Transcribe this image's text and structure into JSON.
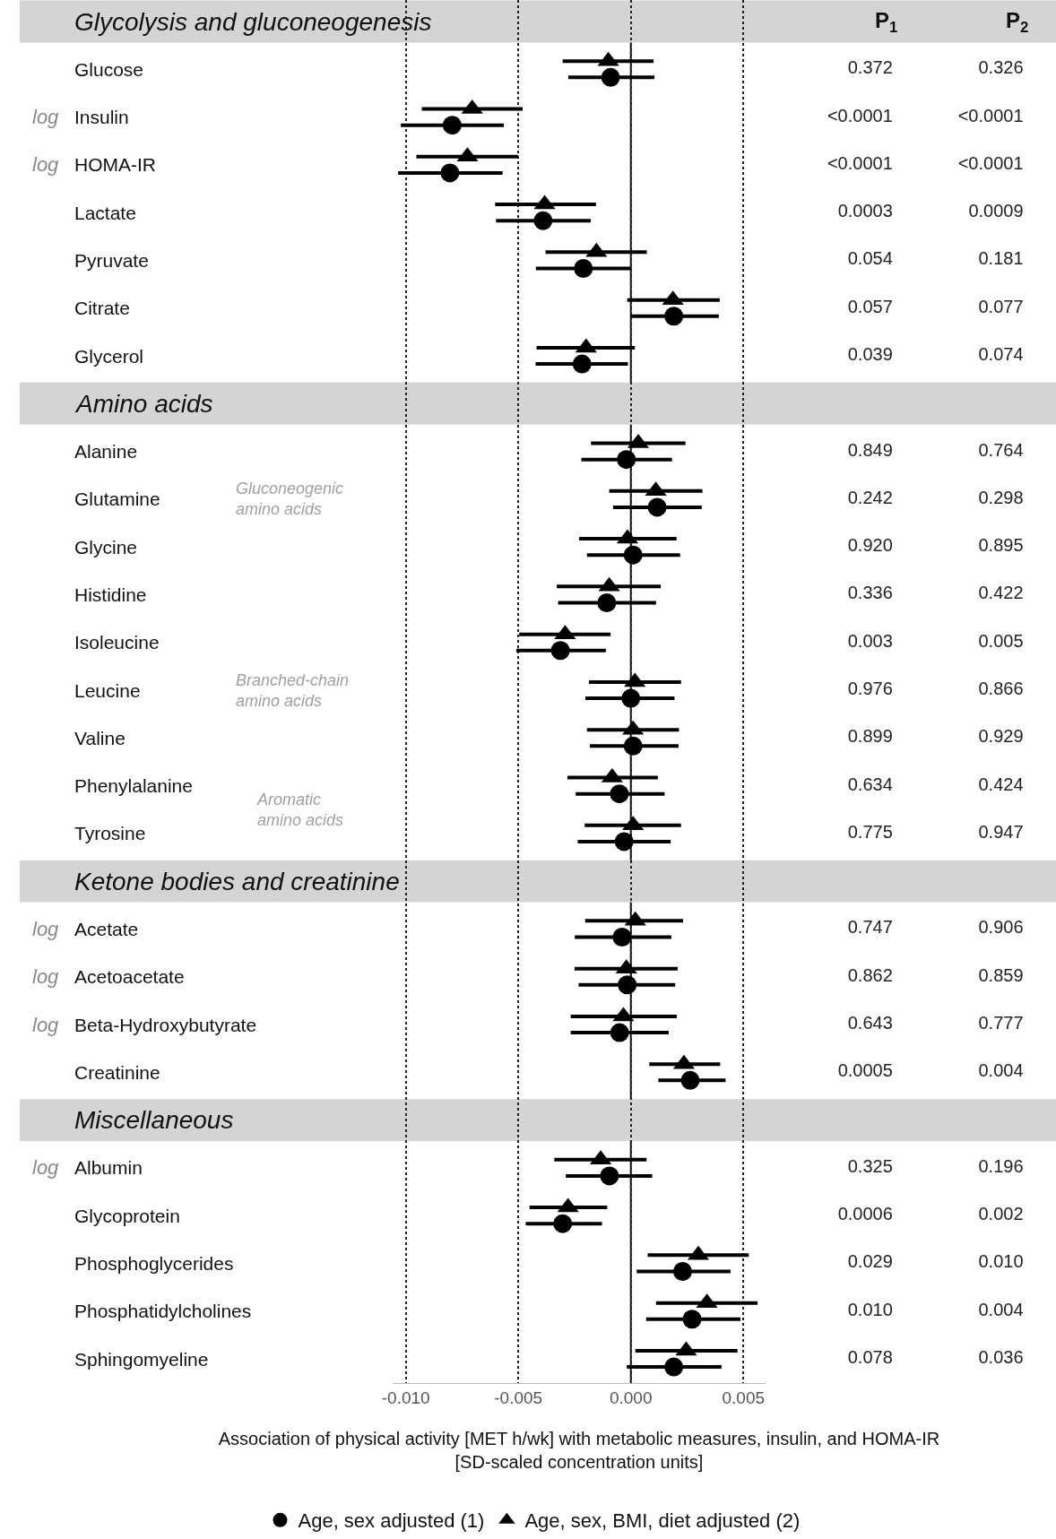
{
  "chart_data": [
    {
      "type": "scatter",
      "orientation": "horizontal",
      "xlabel": "Association of physical activity [MET h/wk] with metabolic measures, insulin, and HOMA-IR [SD-scaled concentration units]",
      "categories": [
        "Glycolysis and gluconeogenesis",
        "Glucose",
        "Insulin",
        "HOMA-IR",
        "Lactate",
        "Pyruvate",
        "Citrate",
        "Glycerol",
        "Amino acids",
        "Alanine",
        "Glutamine",
        "Glycine",
        "Histidine",
        "Isoleucine",
        "Leucine",
        "Valine",
        "Phenylalanine",
        "Tyrosine",
        "Ketone bodies and creatinine",
        "Acetate",
        "Acetoacetate",
        "Beta-Hydroxybutyrate",
        "Creatinine",
        "Miscellaneous",
        "Albumin",
        "Glycoprotein",
        "Phosphoglycerides",
        "Phosphatidylcholines",
        "Sphingomyeline"
      ],
      "series": [
        {
          "name": "Age, sex adjusted (1)",
          "color": "#000000",
          "marker": "circle",
          "values": [
            null,
            -0.0009,
            -0.00794,
            -0.00804,
            -0.0039,
            -0.00211,
            0.00191,
            -0.00217,
            null,
            -0.0002,
            0.00117,
            0.0001,
            -0.00107,
            -0.00313,
            0.0,
            0.0001,
            -0.00051,
            -0.0003,
            null,
            -0.00039,
            -0.00016,
            -0.0005,
            0.00264,
            null,
            -0.00095,
            -0.00303,
            0.0023,
            0.00272,
            0.00191
          ],
          "errors": [
            null,
            [
              -0.00278,
              0.00105
            ],
            [
              -0.01022,
              -0.00564
            ],
            [
              -0.01034,
              -0.0057
            ],
            [
              -0.00599,
              -0.00178
            ],
            [
              -0.00422,
              0.0
            ],
            [
              0.0,
              0.00391
            ],
            [
              -0.00423,
              -0.00013
            ],
            null,
            [
              -0.0022,
              0.00183
            ],
            [
              -0.00079,
              0.00315
            ],
            [
              -0.00195,
              0.00219
            ],
            [
              -0.00323,
              0.00112
            ],
            [
              -0.00509,
              -0.00111
            ],
            [
              -0.00202,
              0.00194
            ],
            [
              -0.00182,
              0.00212
            ],
            [
              -0.00245,
              0.0015
            ],
            [
              -0.00236,
              0.00177
            ],
            null,
            [
              -0.00249,
              0.0018
            ],
            [
              -0.00232,
              0.00197
            ],
            [
              -0.00267,
              0.00168
            ],
            [
              0.00122,
              0.00421
            ],
            null,
            [
              -0.00289,
              0.00095
            ],
            [
              -0.00467,
              -0.00128
            ],
            [
              0.00026,
              0.00443
            ],
            [
              0.00068,
              0.00487
            ],
            [
              -0.00018,
              0.00403
            ]
          ]
        },
        {
          "name": "Age, sex, BMI, diet adjusted (2)",
          "color": "#000000",
          "marker": "triangle",
          "values": [
            null,
            -0.001,
            -0.00705,
            -0.00726,
            -0.00383,
            -0.00153,
            0.00187,
            -0.00199,
            null,
            0.00033,
            0.00111,
            -0.00015,
            -0.00096,
            -0.00292,
            0.00018,
            0.0001,
            -0.00083,
            0.0001,
            null,
            0.0002,
            -0.0002,
            -0.00033,
            0.00236,
            null,
            -0.00134,
            -0.00279,
            0.003,
            0.00338,
            0.00246
          ],
          "errors": [
            null,
            [
              -0.00303,
              0.00101
            ],
            [
              -0.00929,
              -0.00481
            ],
            [
              -0.00953,
              -0.00501
            ],
            [
              -0.00603,
              -0.00155
            ],
            [
              -0.00379,
              0.00071
            ],
            [
              -0.00016,
              0.00395
            ],
            [
              -0.00419,
              0.00018
            ],
            null,
            [
              -0.00177,
              0.00243
            ],
            [
              -0.00096,
              0.00318
            ],
            [
              -0.0023,
              0.00203
            ],
            [
              -0.00329,
              0.00133
            ],
            [
              -0.00496,
              -0.0009
            ],
            [
              -0.00186,
              0.00223
            ],
            [
              -0.00195,
              0.00214
            ],
            [
              -0.00282,
              0.0012
            ],
            [
              -0.00205,
              0.00223
            ],
            null,
            [
              -0.00203,
              0.00232
            ],
            [
              -0.0025,
              0.00208
            ],
            [
              -0.00267,
              0.00204
            ],
            [
              0.00082,
              0.00397
            ],
            null,
            [
              -0.0034,
              0.0007
            ],
            [
              -0.0045,
              -0.00105
            ],
            [
              0.00075,
              0.00524
            ],
            [
              0.00112,
              0.00563
            ],
            [
              0.0002,
              0.00474
            ]
          ]
        }
      ],
      "xlim": [
        -0.0106,
        0.006
      ],
      "xticks": [
        {
          "value": -0.01,
          "label": "-0.010"
        },
        {
          "value": -0.005,
          "label": "-0.005"
        },
        {
          "value": 0,
          "label": "0.000"
        },
        {
          "value": 0.005,
          "label": "0.005"
        }
      ],
      "grid": "x",
      "ref_lines": [
        {
          "axis": "x",
          "value": 0
        }
      ],
      "legend": "bottom",
      "bands": [
        {
          "axis": "y",
          "from": "Glycolysis and gluconeogenesis",
          "to": "Glycolysis and gluconeogenesis",
          "color": "#d4d4d4"
        },
        {
          "axis": "y",
          "from": "Amino acids",
          "to": "Amino acids",
          "color": "#d4d4d4"
        },
        {
          "axis": "y",
          "from": "Ketone bodies and creatinine",
          "to": "Ketone bodies and creatinine",
          "color": "#d4d4d4"
        },
        {
          "axis": "y",
          "from": "Miscellaneous",
          "to": "Miscellaneous",
          "color": "#d4d4d4"
        }
      ],
      "annotations": [
        "log",
        "log",
        "log",
        "log",
        "log",
        "log",
        "Gluconeogenic amino acids",
        "Branched-chain amino acids",
        "Aromatic amino acids"
      ]
    },
    {
      "type": "heatmap",
      "categories": [
        "P$_{1}$",
        "P$_{2}$"
      ],
      "tick_labels": "x",
      "y_categories": [
        "Glucose",
        "Insulin",
        "HOMA-IR",
        "Lactate",
        "Pyruvate",
        "Citrate",
        "Glycerol"
      ],
      "cells": [
        [
          null,
          null
        ],
        [
          null,
          null
        ],
        [
          null,
          null
        ],
        [
          null,
          null
        ],
        [
          null,
          null
        ],
        [
          null,
          null
        ],
        [
          null,
          null
        ]
      ],
      "cell_labels": [
        [
          "0.372",
          "0.326"
        ],
        [
          "<0.0001",
          "<0.0001"
        ],
        [
          "<0.0001",
          "<0.0001"
        ],
        [
          "0.0003",
          "0.0009"
        ],
        [
          "0.054",
          "0.181"
        ],
        [
          "0.057",
          "0.077"
        ],
        [
          "0.039",
          "0.074"
        ]
      ]
    },
    {
      "type": "heatmap",
      "categories": [
        null,
        null
      ],
      "tick_labels": false,
      "y_categories": [
        "Alanine",
        "Glutamine",
        "Glycine",
        "Histidine",
        "Isoleucine",
        "Leucine",
        "Valine",
        "Phenylalanine",
        "Tyrosine"
      ],
      "cells": [
        [
          null,
          null
        ],
        [
          null,
          null
        ],
        [
          null,
          null
        ],
        [
          null,
          null
        ],
        [
          null,
          null
        ],
        [
          null,
          null
        ],
        [
          null,
          null
        ],
        [
          null,
          null
        ],
        [
          null,
          null
        ]
      ],
      "cell_labels": [
        [
          "0.849",
          "0.764"
        ],
        [
          "0.242",
          "0.298"
        ],
        [
          "0.920",
          "0.895"
        ],
        [
          "0.336",
          "0.422"
        ],
        [
          "0.003",
          "0.005"
        ],
        [
          "0.976",
          "0.866"
        ],
        [
          "0.899",
          "0.929"
        ],
        [
          "0.634",
          "0.424"
        ],
        [
          "0.775",
          "0.947"
        ]
      ]
    },
    {
      "type": "heatmap",
      "categories": [
        null,
        null
      ],
      "tick_labels": false,
      "y_categories": [
        "Acetate",
        "Acetoacetate",
        "Beta-Hydroxybutyrate",
        "Creatinine"
      ],
      "cells": [
        [
          null,
          null
        ],
        [
          null,
          null
        ],
        [
          null,
          null
        ],
        [
          null,
          null
        ]
      ],
      "cell_labels": [
        [
          "0.747",
          "0.906"
        ],
        [
          "0.862",
          "0.859"
        ],
        [
          "0.643",
          "0.777"
        ],
        [
          "0.0005",
          "0.004"
        ]
      ]
    },
    {
      "type": "heatmap",
      "categories": [
        null,
        null
      ],
      "tick_labels": false,
      "y_categories": [
        "Albumin",
        "Glycoprotein",
        "Phosphoglycerides",
        "Phosphatidylcholines",
        "Sphingomyeline"
      ],
      "cells": [
        [
          null,
          null
        ],
        [
          null,
          null
        ],
        [
          null,
          null
        ],
        [
          null,
          null
        ],
        [
          null,
          null
        ]
      ],
      "cell_labels": [
        [
          "0.325",
          "0.196"
        ],
        [
          "0.0006",
          "0.002"
        ],
        [
          "0.029",
          "0.010"
        ],
        [
          "0.010",
          "0.004"
        ],
        [
          "0.078",
          "0.036"
        ]
      ]
    }
  ]
}
